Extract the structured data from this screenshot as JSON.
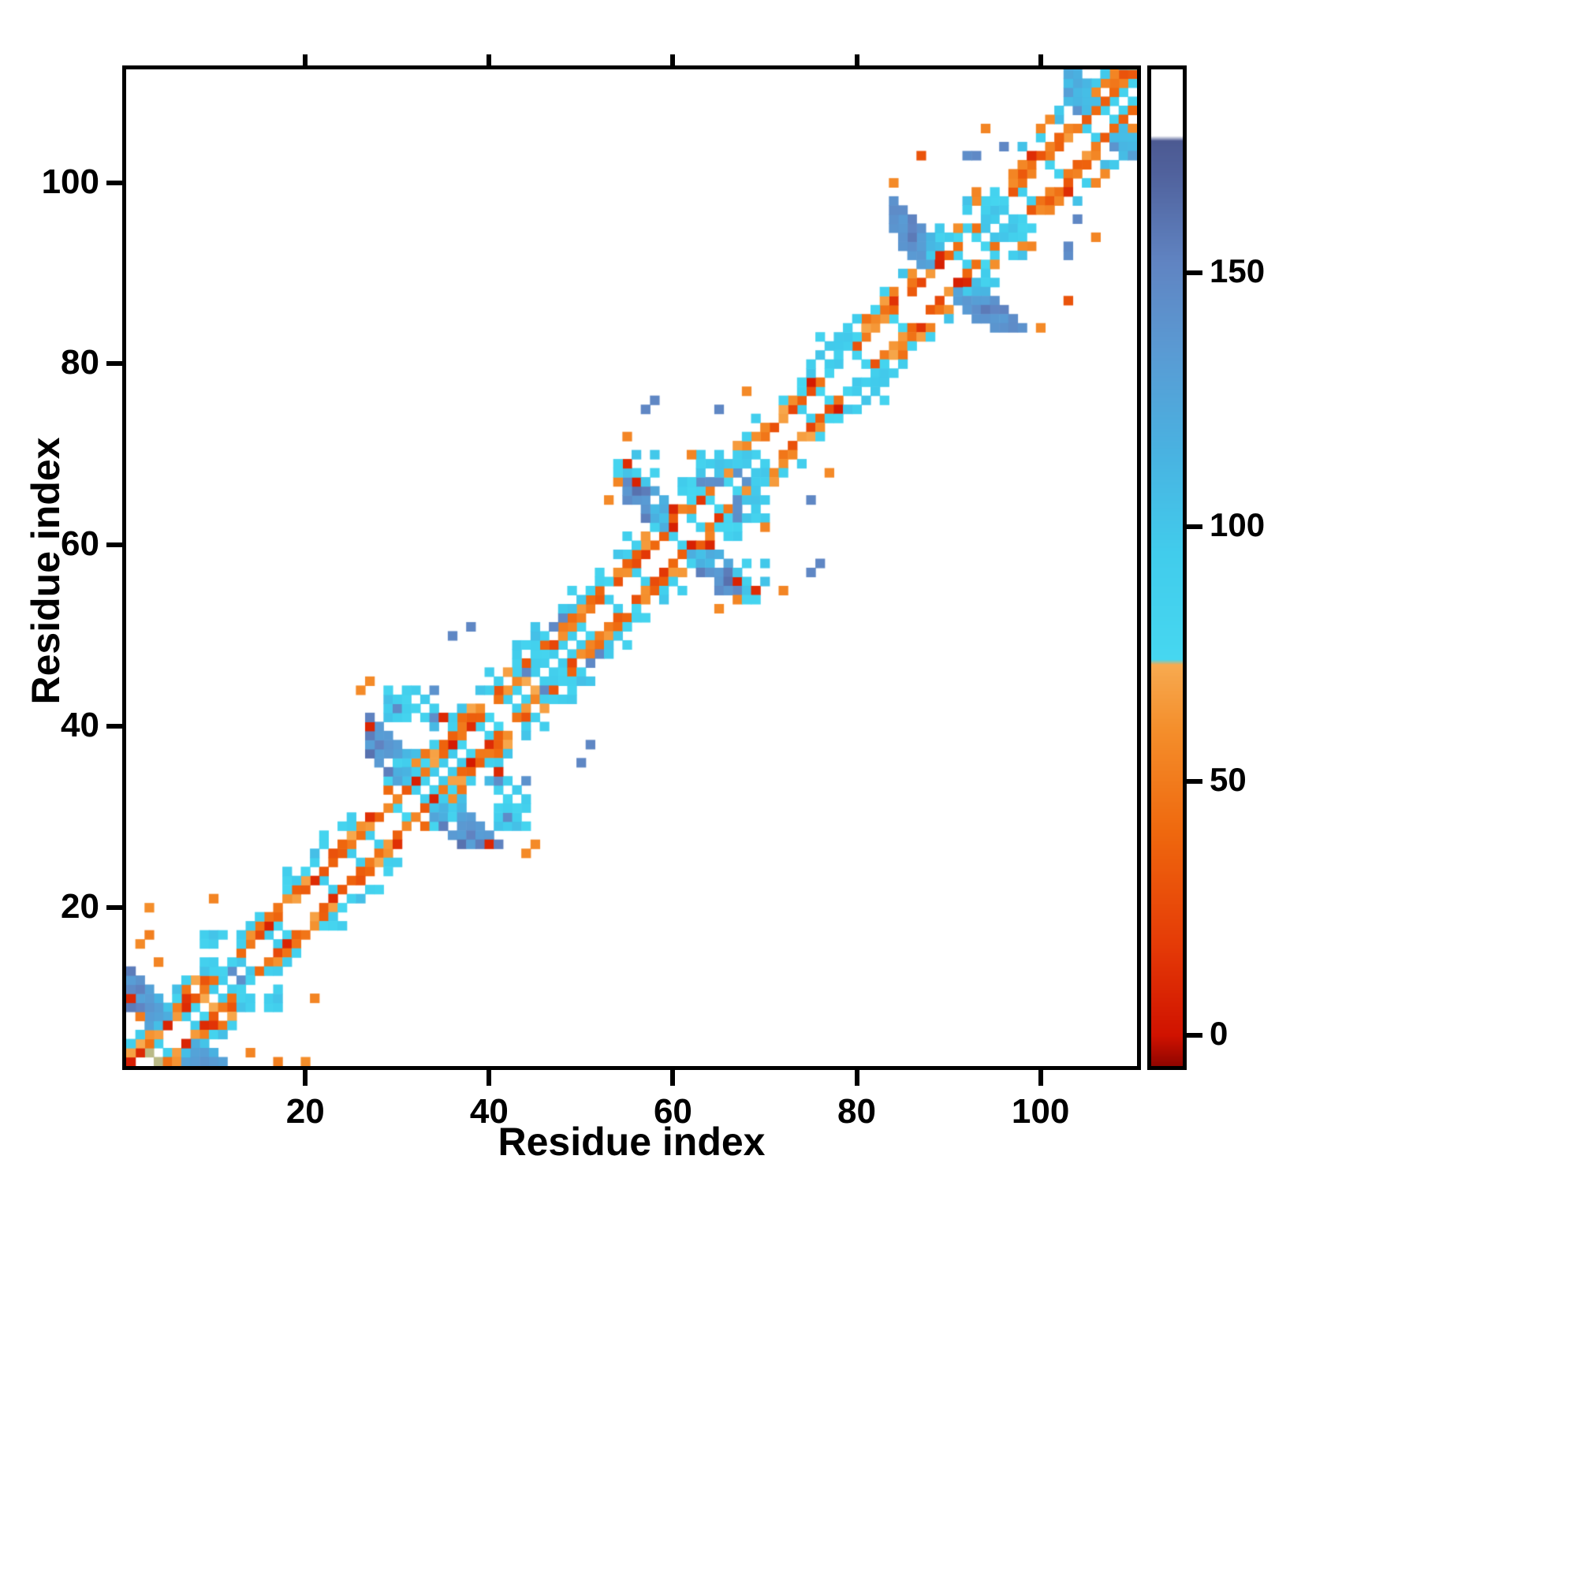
{
  "chart_data": {
    "type": "heatmap",
    "title": "",
    "xlabel": "Residue index",
    "ylabel": "Residue index",
    "x_ticks": [
      20,
      40,
      60,
      80,
      100
    ],
    "y_ticks": [
      20,
      40,
      60,
      80,
      100
    ],
    "x_view": [
      0.5,
      110.5
    ],
    "y_view": [
      2.5,
      112.5
    ],
    "n": 113,
    "grid": false,
    "legend": "colorbar-right",
    "colorbar": {
      "ticks": [
        0,
        50,
        100,
        150
      ],
      "vmin": -6,
      "vmax": 190
    },
    "colormap": [
      [
        -6,
        "#8f0500"
      ],
      [
        0,
        "#d01200"
      ],
      [
        18,
        "#e53b07"
      ],
      [
        40,
        "#ef680e"
      ],
      [
        60,
        "#f48e2b"
      ],
      [
        73,
        "#f7aa50"
      ],
      [
        74,
        "#46d7f0"
      ],
      [
        95,
        "#41ccec"
      ],
      [
        115,
        "#49b2e1"
      ],
      [
        135,
        "#5a9ad3"
      ],
      [
        152,
        "#6084c2"
      ],
      [
        170,
        "#50619c"
      ],
      [
        176,
        "#4c5a92"
      ],
      [
        177,
        "#ffffff"
      ],
      [
        190,
        "#ffffff"
      ]
    ],
    "features": [
      {
        "type": "band",
        "from": 1,
        "to": 112,
        "offset": 1,
        "prob": 0.42,
        "base": 84,
        "amp": 12
      },
      {
        "type": "band",
        "from": 1,
        "to": 112,
        "offset": 2,
        "prob": 0.93,
        "base": 46,
        "amp": 24,
        "red": 0.08
      },
      {
        "type": "band",
        "from": 1,
        "to": 111,
        "offset": 3,
        "prob": 0.78,
        "base": 54,
        "amp": 26,
        "red": 0.05
      },
      {
        "type": "band",
        "from": 1,
        "to": 110,
        "offset": 4,
        "prob": 0.6,
        "base": 58,
        "amp": 20,
        "alt": {
          "frac": 0.5,
          "base": 90,
          "amp": 12
        }
      },
      {
        "type": "band",
        "from": 1,
        "to": 109,
        "offset": 5,
        "prob": 0.34,
        "base": 92,
        "amp": 15
      },
      {
        "type": "band",
        "from": 1,
        "to": 108,
        "offset": 6,
        "prob": 0.15,
        "base": 95,
        "amp": 15
      },
      {
        "type": "hairpin",
        "center": 6,
        "half": 5,
        "thick": 2,
        "sepMin": 3,
        "vNear": 92,
        "vFar": 142,
        "amp": 16,
        "skip": 0.1,
        "red": 0.04
      },
      {
        "type": "hairpin",
        "center": 33,
        "half": 6,
        "thick": 2,
        "sepMin": 3,
        "vNear": 90,
        "vFar": 146,
        "amp": 16,
        "skip": 0.1,
        "red": 0.05
      },
      {
        "type": "hairpin",
        "center": 61,
        "half": 6,
        "thick": 2,
        "sepMin": 3,
        "vNear": 90,
        "vFar": 146,
        "amp": 16,
        "skip": 0.1,
        "red": 0.05
      },
      {
        "type": "hairpin",
        "center": 90,
        "half": 6,
        "thick": 2,
        "sepMin": 3,
        "vNear": 92,
        "vFar": 148,
        "amp": 16,
        "skip": 0.1,
        "red": 0.05
      },
      {
        "type": "hairpin",
        "center": 107,
        "half": 4,
        "thick": 2,
        "sepMin": 3,
        "vNear": 86,
        "vFar": 120,
        "amp": 14,
        "skip": 0.15,
        "red": 0.04
      },
      {
        "type": "patch",
        "i0": 9,
        "i1": 13,
        "j0": 13,
        "j1": 17,
        "prob": 0.55,
        "base": 90,
        "amp": 13,
        "blue": 0.1
      },
      {
        "type": "patch",
        "i0": 29,
        "i1": 34,
        "j0": 41,
        "j1": 44,
        "prob": 0.7,
        "base": 92,
        "amp": 13,
        "blue": 0.12
      },
      {
        "type": "patch",
        "i0": 43,
        "i1": 46,
        "j0": 46,
        "j1": 49,
        "prob": 0.5,
        "base": 88,
        "amp": 12,
        "blue": 0.03
      },
      {
        "type": "patch",
        "i0": 54,
        "i1": 58,
        "j0": 67,
        "j1": 70,
        "prob": 0.5,
        "base": 90,
        "amp": 13,
        "blue": 0.1
      },
      {
        "type": "patch",
        "i0": 63,
        "i1": 68,
        "j0": 66,
        "j1": 70,
        "prob": 0.6,
        "base": 90,
        "amp": 13,
        "blue": 0.08
      },
      {
        "type": "patch",
        "i0": 76,
        "i1": 80,
        "j0": 79,
        "j1": 83,
        "prob": 0.5,
        "base": 90,
        "amp": 13,
        "blue": 0.05
      },
      {
        "type": "patch",
        "i0": 92,
        "i1": 97,
        "j0": 94,
        "j1": 98,
        "prob": 0.65,
        "base": 90,
        "amp": 13,
        "blue": 0.12
      },
      {
        "type": "dots",
        "cells": [
          [
            1,
            3,
            5
          ],
          [
            2,
            4,
            10
          ],
          [
            3,
            5,
            45
          ],
          [
            5,
            7,
            8
          ],
          [
            8,
            2,
            50
          ],
          [
            14,
            4,
            55
          ],
          [
            2,
            16,
            58
          ],
          [
            3,
            17,
            52
          ],
          [
            3,
            20,
            60
          ],
          [
            10,
            21,
            55
          ],
          [
            26,
            44,
            58
          ],
          [
            27,
            45,
            58
          ],
          [
            32,
            34,
            6
          ],
          [
            35,
            41,
            10
          ],
          [
            36,
            50,
            150
          ],
          [
            38,
            51,
            150
          ],
          [
            40,
            46,
            92
          ],
          [
            47,
            51,
            148
          ],
          [
            48,
            52,
            148
          ],
          [
            53,
            65,
            58
          ],
          [
            54,
            67,
            55
          ],
          [
            55,
            69,
            12
          ],
          [
            55,
            72,
            55
          ],
          [
            57,
            75,
            150
          ],
          [
            58,
            76,
            150
          ],
          [
            60,
            62,
            6
          ],
          [
            62,
            70,
            55
          ],
          [
            65,
            75,
            150
          ],
          [
            68,
            77,
            58
          ],
          [
            84,
            100,
            58
          ],
          [
            87,
            103,
            30
          ],
          [
            89,
            91,
            6
          ],
          [
            92,
            103,
            145
          ],
          [
            93,
            103,
            148
          ],
          [
            93,
            98,
            58
          ],
          [
            94,
            106,
            55
          ],
          [
            96,
            104,
            150
          ],
          [
            97,
            101,
            55
          ],
          [
            99,
            93,
            55
          ],
          [
            100,
            106,
            55
          ],
          [
            101,
            107,
            58
          ],
          [
            103,
            99,
            12
          ],
          [
            104,
            108,
            140
          ],
          [
            106,
            110,
            58
          ],
          [
            108,
            112,
            55
          ]
        ]
      }
    ]
  }
}
